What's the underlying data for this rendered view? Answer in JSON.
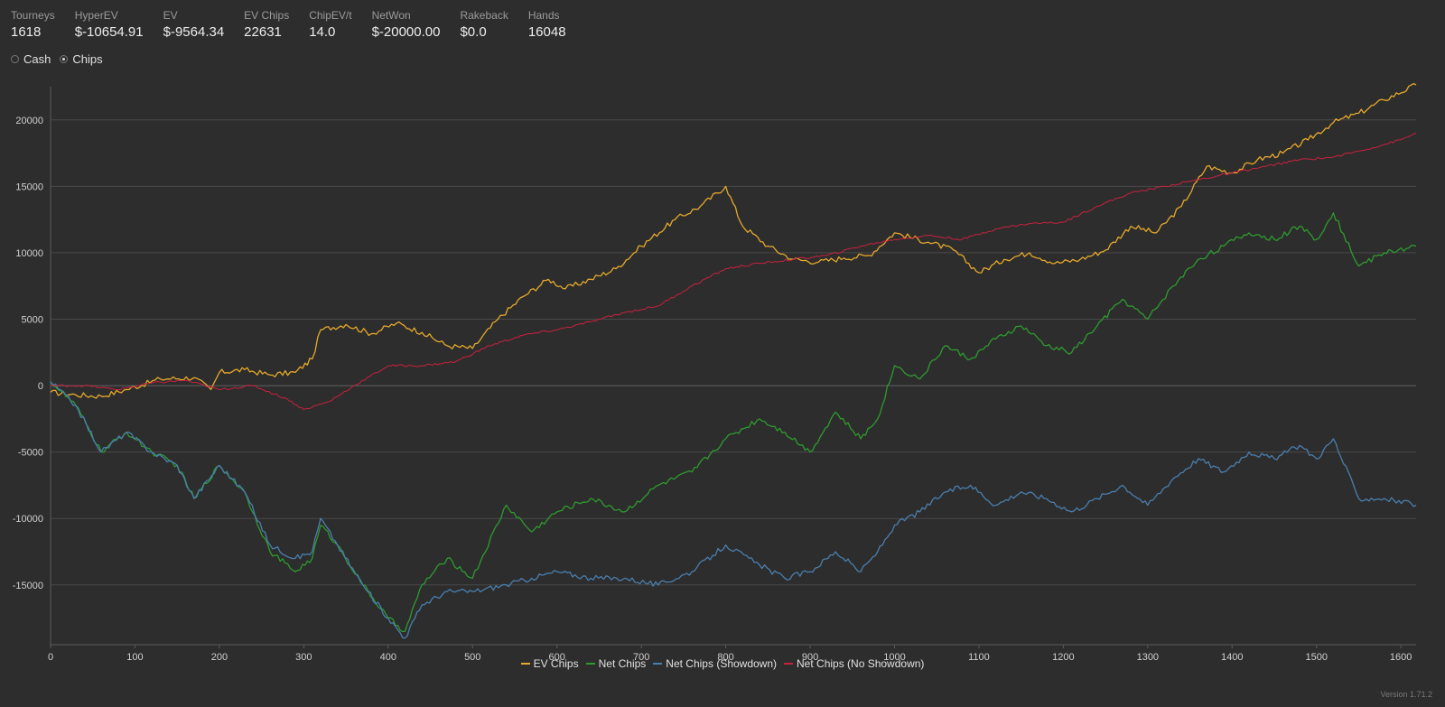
{
  "stats": [
    {
      "label": "Tourneys",
      "value": "1618"
    },
    {
      "label": "HyperEV",
      "value": "$-10654.91"
    },
    {
      "label": "EV",
      "value": "$-9564.34"
    },
    {
      "label": "EV Chips",
      "value": "22631"
    },
    {
      "label": "ChipEV/t",
      "value": "14.0"
    },
    {
      "label": "NetWon",
      "value": "$-20000.00"
    },
    {
      "label": "Rakeback",
      "value": "$0.0"
    },
    {
      "label": "Hands",
      "value": "16048"
    }
  ],
  "mode": {
    "options": [
      {
        "label": "Cash",
        "checked": false
      },
      {
        "label": "Chips",
        "checked": true
      }
    ]
  },
  "version": "Version 1.71.2",
  "chart_data": {
    "type": "line",
    "xlabel": "",
    "ylabel": "",
    "xlim": [
      0,
      1618
    ],
    "ylim": [
      -19500,
      22500
    ],
    "xticks": [
      0,
      100,
      200,
      300,
      400,
      500,
      600,
      700,
      800,
      900,
      1000,
      1100,
      1200,
      1300,
      1400,
      1500,
      1600
    ],
    "yticks": [
      -15000,
      -10000,
      -5000,
      0,
      5000,
      10000,
      15000,
      20000
    ],
    "grid": "horizontal",
    "legend_position": "bottom-center",
    "series": [
      {
        "name": "EV Chips",
        "color": "#e5a92b",
        "x": [
          0,
          30,
          60,
          90,
          130,
          170,
          190,
          200,
          230,
          260,
          290,
          310,
          320,
          350,
          380,
          410,
          440,
          470,
          500,
          530,
          560,
          590,
          610,
          640,
          670,
          700,
          740,
          770,
          800,
          820,
          850,
          880,
          910,
          940,
          970,
          1000,
          1040,
          1070,
          1100,
          1130,
          1160,
          1190,
          1220,
          1250,
          1280,
          1310,
          1340,
          1370,
          1400,
          1430,
          1460,
          1490,
          1520,
          1550,
          1580,
          1618
        ],
        "y": [
          -500,
          -700,
          -800,
          -300,
          500,
          600,
          -300,
          1000,
          1200,
          800,
          1000,
          2000,
          4200,
          4600,
          3900,
          4700,
          4000,
          3000,
          2800,
          5000,
          6700,
          8000,
          7300,
          8000,
          8800,
          10500,
          12500,
          13500,
          15000,
          12000,
          10500,
          9500,
          9300,
          9600,
          9800,
          11500,
          10800,
          10200,
          8500,
          9500,
          10000,
          9200,
          9500,
          10200,
          12000,
          11500,
          13500,
          16500,
          16000,
          17000,
          17500,
          18500,
          19800,
          20500,
          21500,
          22631
        ]
      },
      {
        "name": "Net Chips",
        "color": "#2e9b2e",
        "x": [
          0,
          30,
          60,
          90,
          120,
          150,
          170,
          200,
          230,
          260,
          290,
          310,
          320,
          340,
          370,
          400,
          420,
          440,
          470,
          500,
          540,
          570,
          600,
          640,
          680,
          720,
          760,
          800,
          840,
          870,
          900,
          930,
          960,
          980,
          1000,
          1030,
          1060,
          1090,
          1120,
          1150,
          1180,
          1210,
          1240,
          1270,
          1300,
          1330,
          1360,
          1390,
          1420,
          1450,
          1480,
          1500,
          1520,
          1550,
          1580,
          1618
        ],
        "y": [
          300,
          -1500,
          -5000,
          -3500,
          -5000,
          -6000,
          -8500,
          -6000,
          -8000,
          -12500,
          -14000,
          -13000,
          -10500,
          -12000,
          -15000,
          -17500,
          -18500,
          -15000,
          -13000,
          -14500,
          -9000,
          -11000,
          -9500,
          -8500,
          -9500,
          -7500,
          -6500,
          -4000,
          -2500,
          -3500,
          -5000,
          -2000,
          -4000,
          -2500,
          1500,
          500,
          3000,
          2000,
          3500,
          4500,
          3000,
          2500,
          4500,
          6500,
          5000,
          7500,
          9500,
          10500,
          11500,
          11000,
          12000,
          11000,
          13000,
          9000,
          10000,
          10500
        ]
      },
      {
        "name": "Net Chips (Showdown)",
        "color": "#4a7fae",
        "x": [
          0,
          30,
          60,
          90,
          120,
          150,
          170,
          200,
          230,
          260,
          290,
          310,
          320,
          340,
          370,
          400,
          420,
          440,
          470,
          500,
          540,
          570,
          600,
          640,
          680,
          720,
          760,
          800,
          840,
          870,
          900,
          930,
          960,
          980,
          1000,
          1030,
          1060,
          1090,
          1120,
          1150,
          1180,
          1210,
          1240,
          1270,
          1300,
          1330,
          1360,
          1390,
          1420,
          1450,
          1480,
          1500,
          1520,
          1550,
          1580,
          1618
        ],
        "y": [
          300,
          -1500,
          -5000,
          -3500,
          -5000,
          -6000,
          -8500,
          -6000,
          -8000,
          -12000,
          -13000,
          -12500,
          -10000,
          -12000,
          -15000,
          -17500,
          -19000,
          -16500,
          -15500,
          -15500,
          -15000,
          -14500,
          -14000,
          -14500,
          -14500,
          -15000,
          -14000,
          -12000,
          -13500,
          -14500,
          -14000,
          -12500,
          -14000,
          -12500,
          -10500,
          -9500,
          -8000,
          -7500,
          -9000,
          -8000,
          -8500,
          -9500,
          -8500,
          -7500,
          -9000,
          -7000,
          -5500,
          -6500,
          -5000,
          -5500,
          -4500,
          -5500,
          -4000,
          -8500,
          -8500,
          -9000
        ]
      },
      {
        "name": "Net Chips (No Showdown)",
        "color": "#c8213f",
        "x": [
          0,
          40,
          80,
          120,
          160,
          200,
          240,
          280,
          300,
          330,
          360,
          400,
          440,
          480,
          520,
          560,
          600,
          640,
          680,
          720,
          760,
          800,
          840,
          880,
          920,
          960,
          1000,
          1040,
          1080,
          1120,
          1160,
          1200,
          1240,
          1280,
          1320,
          1360,
          1400,
          1440,
          1480,
          1520,
          1560,
          1600,
          1618
        ],
        "y": [
          0,
          0,
          -300,
          200,
          400,
          -300,
          0,
          -1000,
          -1800,
          -1200,
          0,
          1500,
          1500,
          1800,
          3000,
          3800,
          4200,
          4800,
          5500,
          6000,
          7500,
          8800,
          9200,
          9500,
          9800,
          10500,
          11000,
          11300,
          11000,
          11800,
          12200,
          12300,
          13500,
          14500,
          15000,
          15500,
          16000,
          16500,
          17000,
          17200,
          17800,
          18500,
          19000
        ]
      }
    ]
  }
}
